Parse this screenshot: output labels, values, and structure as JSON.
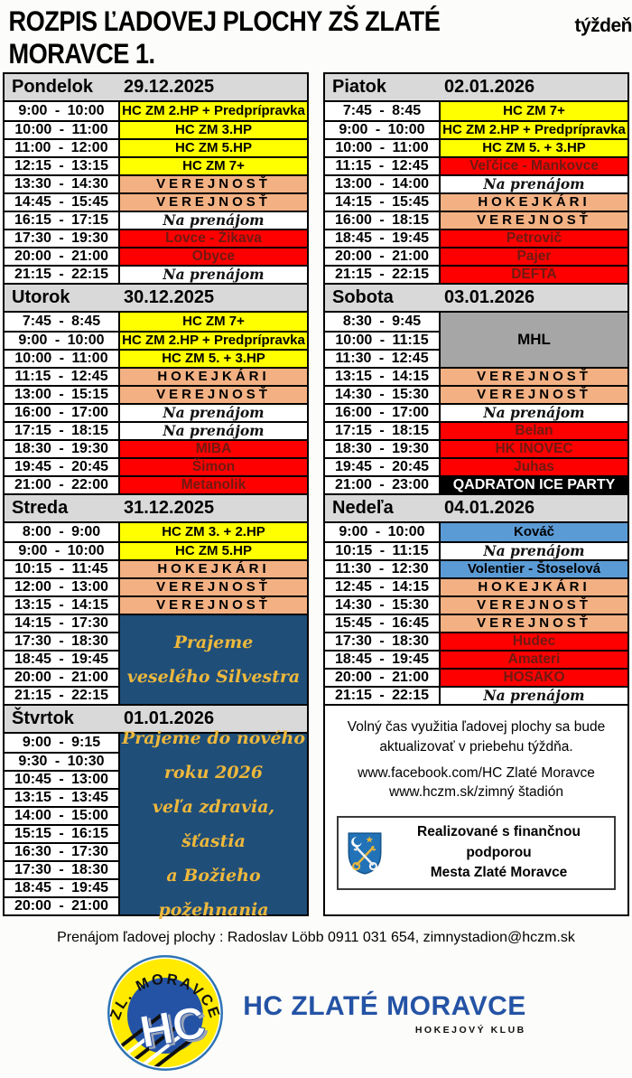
{
  "title": {
    "main": "ROZPIS ĽADOVEJ PLOCHY ZŠ ZLATÉ MORAVCE 1.",
    "suffix": "týždeň"
  },
  "colors": {
    "yellow": "#FFFF00",
    "salmon": "#F3B183",
    "red": "#FF0000",
    "match_text": "#6E1A12",
    "blue": "#5B9BD5",
    "navy": "#1F4E79",
    "gold": "#EDB83C",
    "gray_mhl": "#A6A6A6",
    "header_gray": "#D9D9D9",
    "logo_blue": "#2453A5",
    "shield_blue": "#2272B8",
    "key_gold": "#E8B63B"
  },
  "days": [
    {
      "id": "pondelok",
      "name": "Pondelok",
      "date": "29.12.2025",
      "column": "left",
      "rows": [
        {
          "time": "9:00 - 10:00",
          "label": "HC ZM 2.HP + Predprípravka",
          "type": "club"
        },
        {
          "time": "10:00 - 11:00",
          "label": "HC ZM 3.HP",
          "type": "club"
        },
        {
          "time": "11:00 - 12:00",
          "label": "HC ZM 5.HP",
          "type": "club"
        },
        {
          "time": "12:15 - 13:15",
          "label": "HC ZM 7+",
          "type": "club"
        },
        {
          "time": "13:30 - 14:30",
          "label": "VEREJNOSŤ",
          "type": "public"
        },
        {
          "time": "14:45 - 15:45",
          "label": "VEREJNOSŤ",
          "type": "public"
        },
        {
          "time": "16:15 - 17:15",
          "label": "Na prenájom",
          "type": "rent"
        },
        {
          "time": "17:30 - 19:30",
          "label": "Lovce - Žikava",
          "type": "match"
        },
        {
          "time": "20:00 - 21:00",
          "label": "Obyce",
          "type": "match"
        },
        {
          "time": "21:15 - 22:15",
          "label": "Na prenájom",
          "type": "rent"
        }
      ]
    },
    {
      "id": "utorok",
      "name": "Utorok",
      "date": "30.12.2025",
      "column": "left",
      "rows": [
        {
          "time": "7:45 - 8:45",
          "label": "HC ZM 7+",
          "type": "club"
        },
        {
          "time": "9:00 - 10:00",
          "label": "HC ZM 2.HP + Predprípravka",
          "type": "club"
        },
        {
          "time": "10:00 - 11:00",
          "label": "HC ZM 5. + 3.HP",
          "type": "club"
        },
        {
          "time": "11:15 - 12:45",
          "label": "HOKEJKÁRI",
          "type": "public"
        },
        {
          "time": "13:00 - 15:15",
          "label": "VEREJNOSŤ",
          "type": "public"
        },
        {
          "time": "16:00 - 17:00",
          "label": "Na prenájom",
          "type": "rent"
        },
        {
          "time": "17:15 - 18:15",
          "label": "Na prenájom",
          "type": "rent"
        },
        {
          "time": "18:30 - 19:30",
          "label": "MIBA",
          "type": "match"
        },
        {
          "time": "19:45 - 20:45",
          "label": "Šimon",
          "type": "match"
        },
        {
          "time": "21:00 - 22:00",
          "label": "Metanolik",
          "type": "match"
        }
      ]
    },
    {
      "id": "streda",
      "name": "Streda",
      "date": "31.12.2025",
      "column": "left",
      "rows": [
        {
          "time": "8:00 - 9:00",
          "label": "HC ZM 3. + 2.HP",
          "type": "club"
        },
        {
          "time": "9:00 - 10:00",
          "label": "HC ZM 5.HP",
          "type": "club"
        },
        {
          "time": "10:15 - 11:45",
          "label": "HOKEJKÁRI",
          "type": "public"
        },
        {
          "time": "12:00 - 13:00",
          "label": "VEREJNOSŤ",
          "type": "public"
        },
        {
          "time": "13:15 - 14:15",
          "label": "VEREJNOSŤ",
          "type": "public"
        },
        {
          "time": "14:15 - 17:30",
          "label": "Prajeme\nveselého Silvestra",
          "type": "wish",
          "span": 5
        },
        {
          "time": "17:30 - 18:30",
          "type": "cont"
        },
        {
          "time": "18:45 - 19:45",
          "type": "cont"
        },
        {
          "time": "20:00 - 21:00",
          "type": "cont"
        },
        {
          "time": "21:15 - 22:15",
          "type": "cont"
        }
      ]
    },
    {
      "id": "stvrtok",
      "name": "Štvrtok",
      "date": "01.01.2026",
      "column": "left",
      "rows": [
        {
          "time": "9:00 - 9:15",
          "label": "Prajeme do nového\nroku 2026\nveľa zdravia, šťastia\na Božieho požehnania",
          "type": "wish",
          "span": 10
        },
        {
          "time": "9:30 - 10:30",
          "type": "cont"
        },
        {
          "time": "10:45 - 13:00",
          "type": "cont"
        },
        {
          "time": "13:15 - 13:45",
          "type": "cont"
        },
        {
          "time": "14:00 - 15:00",
          "type": "cont"
        },
        {
          "time": "15:15 - 16:15",
          "type": "cont"
        },
        {
          "time": "16:30 - 17:30",
          "type": "cont"
        },
        {
          "time": "17:30 - 18:30",
          "type": "cont"
        },
        {
          "time": "18:45 - 19:45",
          "type": "cont"
        },
        {
          "time": "20:00 - 21:00",
          "type": "cont"
        }
      ]
    },
    {
      "id": "piatok",
      "name": "Piatok",
      "date": "02.01.2026",
      "column": "right",
      "rows": [
        {
          "time": "7:45 - 8:45",
          "label": "HC ZM 7+",
          "type": "club"
        },
        {
          "time": "9:00 - 10:00",
          "label": "HC ZM 2.HP + Predprípravka",
          "type": "club"
        },
        {
          "time": "10:00 - 11:00",
          "label": "HC ZM 5. + 3.HP",
          "type": "club"
        },
        {
          "time": "11:15 - 12:45",
          "label": "Veľčice - Mankovce",
          "type": "match"
        },
        {
          "time": "13:00 - 14:00",
          "label": "Na prenájom",
          "type": "rent"
        },
        {
          "time": "14:15 - 15:45",
          "label": "HOKEJKÁRI",
          "type": "public"
        },
        {
          "time": "16:00 - 18:15",
          "label": "VEREJNOSŤ",
          "type": "public"
        },
        {
          "time": "18:45 - 19:45",
          "label": "Petrovič",
          "type": "match"
        },
        {
          "time": "20:00 - 21:00",
          "label": "Pajer",
          "type": "match"
        },
        {
          "time": "21:15 - 22:15",
          "label": "DEFTA",
          "type": "match"
        }
      ]
    },
    {
      "id": "sobota",
      "name": "Sobota",
      "date": "03.01.2026",
      "column": "right",
      "rows": [
        {
          "time": "8:30 - 9:45",
          "label": "MHL",
          "type": "mhl",
          "span": 3
        },
        {
          "time": "10:00 - 11:15",
          "type": "cont"
        },
        {
          "time": "11:30 - 12:45",
          "type": "cont"
        },
        {
          "time": "13:15 - 14:15",
          "label": "VEREJNOSŤ",
          "type": "public"
        },
        {
          "time": "14:30 - 15:30",
          "label": "VEREJNOSŤ",
          "type": "public"
        },
        {
          "time": "16:00 - 17:00",
          "label": "Na prenájom",
          "type": "rent"
        },
        {
          "time": "17:15 - 18:15",
          "label": "Belan",
          "type": "match"
        },
        {
          "time": "18:30 - 19:30",
          "label": "HK INOVEC",
          "type": "match"
        },
        {
          "time": "19:45 - 20:45",
          "label": "Juhas",
          "type": "match"
        },
        {
          "time": "21:00 - 23:00",
          "label": "QADRATON ICE PARTY",
          "type": "party"
        }
      ]
    },
    {
      "id": "nedela",
      "name": "Nedeľa",
      "date": "04.01.2026",
      "column": "right",
      "rows": [
        {
          "time": "9:00 - 10:00",
          "label": "Kováč",
          "type": "blue"
        },
        {
          "time": "10:15 - 11:15",
          "label": "Na prenájom",
          "type": "rent"
        },
        {
          "time": "11:30 - 12:30",
          "label": "Volentier - Štoselová",
          "type": "blue"
        },
        {
          "time": "12:45 - 14:15",
          "label": "HOKEJKÁRI",
          "type": "public"
        },
        {
          "time": "14:30 - 15:30",
          "label": "VEREJNOSŤ",
          "type": "public"
        },
        {
          "time": "15:45 - 16:45",
          "label": "VEREJNOSŤ",
          "type": "public"
        },
        {
          "time": "17:30 - 18:30",
          "label": "Hudec",
          "type": "match"
        },
        {
          "time": "18:45 - 19:45",
          "label": "Amateri",
          "type": "match"
        },
        {
          "time": "20:00 - 21:00",
          "label": "HOSAKO",
          "type": "match"
        },
        {
          "time": "21:15 - 22:15",
          "label": "Na prenájom",
          "type": "rent"
        }
      ]
    }
  ],
  "info": {
    "update_note": "Volný čas využitia ľadovej plochy sa bude\naktualizovať v priebehu týždňa.",
    "facebook": "www.facebook.com/HC Zlaté Moravce",
    "website": "www.hczm.sk/zimný štadión"
  },
  "support": {
    "line1": "Realizované s finančnou  podporou",
    "line2": "Mesta Zlaté Moravce"
  },
  "contact": {
    "line": "Prenájom ľadovej plochy : Radoslav Löbb  0911 031 654, zimnystadion@hczm.sk"
  },
  "footer": {
    "badge_arc": "ZL. MORAVCE",
    "badge_letters": "HC",
    "club_name": "HC ZLATÉ MORAVCE",
    "club_subtitle": "HOKEJOVÝ KLUB"
  }
}
